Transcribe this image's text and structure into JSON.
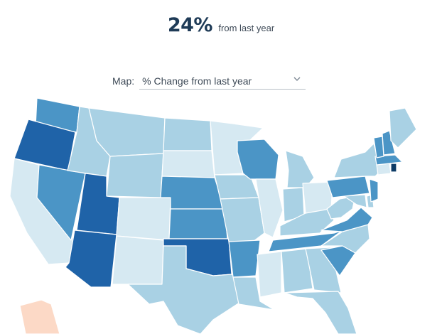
{
  "header": {
    "stat_value": "24%",
    "stat_caption": "from last year"
  },
  "map_selector": {
    "label": "Map:",
    "selected": "% Change from last year",
    "icon": "chevron-down-icon"
  },
  "color_scale": {
    "lightest": "#d6e9f2",
    "light": "#a9d1e4",
    "medium": "#4b95c6",
    "dark": "#1f63a8",
    "darkest": "#0d3b66",
    "negative": "#fcd9c6"
  },
  "states": [
    {
      "code": "WA",
      "level": "medium"
    },
    {
      "code": "OR",
      "level": "dark"
    },
    {
      "code": "CA",
      "level": "lightest"
    },
    {
      "code": "NV",
      "level": "medium"
    },
    {
      "code": "ID",
      "level": "light"
    },
    {
      "code": "MT",
      "level": "light"
    },
    {
      "code": "WY",
      "level": "light"
    },
    {
      "code": "UT",
      "level": "dark"
    },
    {
      "code": "AZ",
      "level": "dark"
    },
    {
      "code": "CO",
      "level": "lightest"
    },
    {
      "code": "NM",
      "level": "lightest"
    },
    {
      "code": "ND",
      "level": "light"
    },
    {
      "code": "SD",
      "level": "lightest"
    },
    {
      "code": "NE",
      "level": "medium"
    },
    {
      "code": "KS",
      "level": "medium"
    },
    {
      "code": "OK",
      "level": "dark"
    },
    {
      "code": "TX",
      "level": "light"
    },
    {
      "code": "MN",
      "level": "lightest"
    },
    {
      "code": "IA",
      "level": "light"
    },
    {
      "code": "MO",
      "level": "light"
    },
    {
      "code": "AR",
      "level": "medium"
    },
    {
      "code": "LA",
      "level": "light"
    },
    {
      "code": "WI",
      "level": "medium"
    },
    {
      "code": "IL",
      "level": "lightest"
    },
    {
      "code": "MS",
      "level": "lightest"
    },
    {
      "code": "MI",
      "level": "light"
    },
    {
      "code": "IN",
      "level": "light"
    },
    {
      "code": "OH",
      "level": "lightest"
    },
    {
      "code": "KY",
      "level": "light"
    },
    {
      "code": "TN",
      "level": "medium"
    },
    {
      "code": "AL",
      "level": "light"
    },
    {
      "code": "GA",
      "level": "light"
    },
    {
      "code": "FL",
      "level": "light"
    },
    {
      "code": "SC",
      "level": "medium"
    },
    {
      "code": "NC",
      "level": "light"
    },
    {
      "code": "VA",
      "level": "medium"
    },
    {
      "code": "WV",
      "level": "light"
    },
    {
      "code": "MD",
      "level": "light"
    },
    {
      "code": "DE",
      "level": "light"
    },
    {
      "code": "PA",
      "level": "medium"
    },
    {
      "code": "NJ",
      "level": "medium"
    },
    {
      "code": "NY",
      "level": "light"
    },
    {
      "code": "CT",
      "level": "lightest"
    },
    {
      "code": "RI",
      "level": "darkest"
    },
    {
      "code": "MA",
      "level": "medium"
    },
    {
      "code": "VT",
      "level": "medium"
    },
    {
      "code": "NH",
      "level": "medium"
    },
    {
      "code": "ME",
      "level": "light"
    },
    {
      "code": "AK",
      "level": "negative"
    }
  ]
}
